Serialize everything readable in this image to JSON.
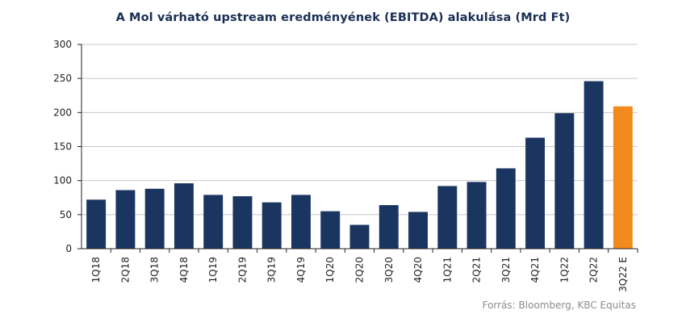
{
  "chart_data": {
    "type": "bar",
    "title": "A Mol várható upstream eredményének  (EBITDA) alakulása (Mrd Ft)",
    "xlabel": "",
    "ylabel": "",
    "ylim": [
      0,
      300
    ],
    "yticks": [
      0,
      50,
      100,
      150,
      200,
      250,
      300
    ],
    "grid": true,
    "legend": "none",
    "categories": [
      "1Q18",
      "2Q18",
      "3Q18",
      "4Q18",
      "1Q19",
      "2Q19",
      "3Q19",
      "4Q19",
      "1Q20",
      "2Q20",
      "3Q20",
      "4Q20",
      "1Q21",
      "2Q21",
      "3Q21",
      "4Q21",
      "1Q22",
      "2Q22",
      "3Q22 E"
    ],
    "values": [
      72,
      86,
      88,
      96,
      79,
      77,
      68,
      79,
      55,
      35,
      64,
      54,
      92,
      98,
      118,
      163,
      199,
      246,
      209
    ],
    "colors": {
      "default": "#1a3560",
      "estimate": "#f28a1e",
      "estimate_index": 18,
      "grid": "#c8c8c8",
      "axis": "#222222"
    }
  },
  "source": "Forrás: Bloomberg,  KBC Equitas"
}
